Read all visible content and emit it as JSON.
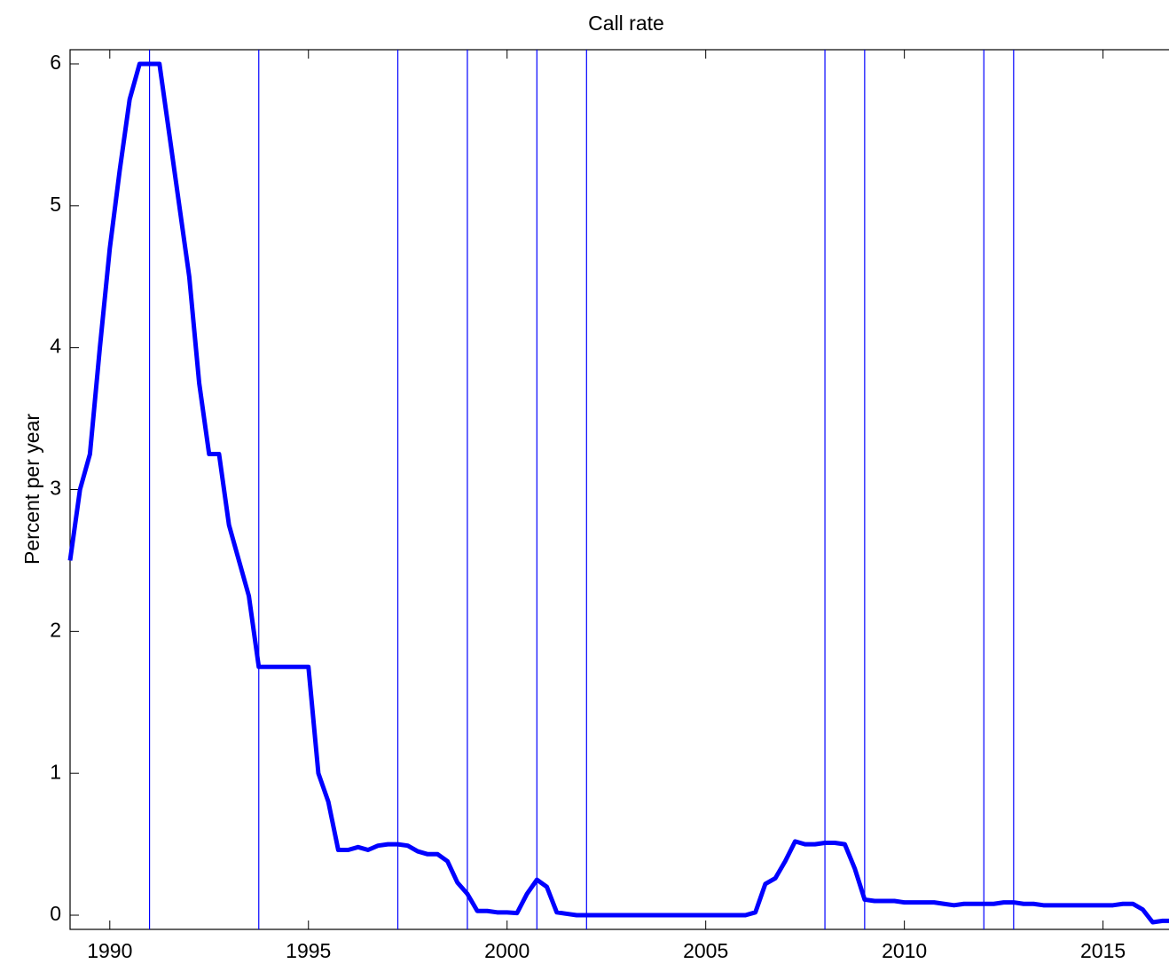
{
  "chart_data": {
    "type": "line",
    "title": "Call rate",
    "ylabel": "Percent per year",
    "x": [
      1989,
      1989.25,
      1989.5,
      1989.75,
      1990,
      1990.25,
      1990.5,
      1990.75,
      1991,
      1991.25,
      1991.5,
      1991.75,
      1992,
      1992.25,
      1992.5,
      1992.75,
      1993,
      1993.25,
      1993.5,
      1993.75,
      1994,
      1994.25,
      1994.5,
      1994.75,
      1995,
      1995.25,
      1995.5,
      1995.75,
      1996,
      1996.25,
      1996.5,
      1996.75,
      1997,
      1997.25,
      1997.5,
      1997.75,
      1998,
      1998.25,
      1998.5,
      1998.75,
      1999,
      1999.25,
      1999.5,
      1999.75,
      2000,
      2000.25,
      2000.5,
      2000.75,
      2001,
      2001.25,
      2001.5,
      2001.75,
      2002,
      2002.25,
      2002.5,
      2002.75,
      2003,
      2003.25,
      2003.5,
      2003.75,
      2004,
      2004.25,
      2004.5,
      2004.75,
      2005,
      2005.25,
      2005.5,
      2005.75,
      2006,
      2006.25,
      2006.5,
      2006.75,
      2007,
      2007.25,
      2007.5,
      2007.75,
      2008,
      2008.25,
      2008.5,
      2008.75,
      2009,
      2009.25,
      2009.5,
      2009.75,
      2010,
      2010.25,
      2010.5,
      2010.75,
      2011,
      2011.25,
      2011.5,
      2011.75,
      2012,
      2012.25,
      2012.5,
      2012.75,
      2013,
      2013.25,
      2013.5,
      2013.75,
      2014,
      2014.25,
      2014.5,
      2014.75,
      2015,
      2015.25,
      2015.5,
      2015.75,
      2016,
      2016.25,
      2016.5,
      2016.75
    ],
    "series": [
      {
        "name": "Call rate",
        "color": "#0000ff",
        "values": [
          2.5,
          3.0,
          3.25,
          4.0,
          4.7,
          5.25,
          5.75,
          6.0,
          6.0,
          6.0,
          5.5,
          5.0,
          4.5,
          3.75,
          3.25,
          3.25,
          2.75,
          2.5,
          2.25,
          1.75,
          1.75,
          1.75,
          1.75,
          1.75,
          1.75,
          1.0,
          0.8,
          0.46,
          0.46,
          0.48,
          0.46,
          0.49,
          0.5,
          0.5,
          0.49,
          0.45,
          0.43,
          0.43,
          0.38,
          0.23,
          0.15,
          0.03,
          0.03,
          0.02,
          0.02,
          0.015,
          0.15,
          0.25,
          0.2,
          0.02,
          0.01,
          0.0,
          0.0,
          0.0,
          0.0,
          0.0,
          0.0,
          0.0,
          0.0,
          0.0,
          0.0,
          0.0,
          0.0,
          0.0,
          0.0,
          0.0,
          0.0,
          0.0,
          0.0,
          0.02,
          0.22,
          0.26,
          0.38,
          0.52,
          0.5,
          0.5,
          0.51,
          0.51,
          0.5,
          0.33,
          0.11,
          0.1,
          0.1,
          0.1,
          0.09,
          0.09,
          0.09,
          0.09,
          0.08,
          0.07,
          0.08,
          0.08,
          0.08,
          0.08,
          0.09,
          0.09,
          0.08,
          0.08,
          0.07,
          0.07,
          0.07,
          0.07,
          0.07,
          0.07,
          0.07,
          0.07,
          0.08,
          0.08,
          0.04,
          -0.05,
          -0.04,
          -0.04
        ]
      }
    ],
    "vlines": [
      1991.0,
      1993.75,
      1997.25,
      1999.0,
      2000.75,
      2002.0,
      2008.0,
      2009.0,
      2012.0,
      2012.75
    ],
    "vline_color": "#0000ff",
    "xlim": [
      1989,
      2016.75
    ],
    "ylim": [
      -0.1,
      6.1
    ],
    "xticks": [
      1990,
      1995,
      2000,
      2005,
      2010,
      2015
    ],
    "yticks": [
      0,
      1,
      2,
      3,
      4,
      5,
      6
    ]
  }
}
